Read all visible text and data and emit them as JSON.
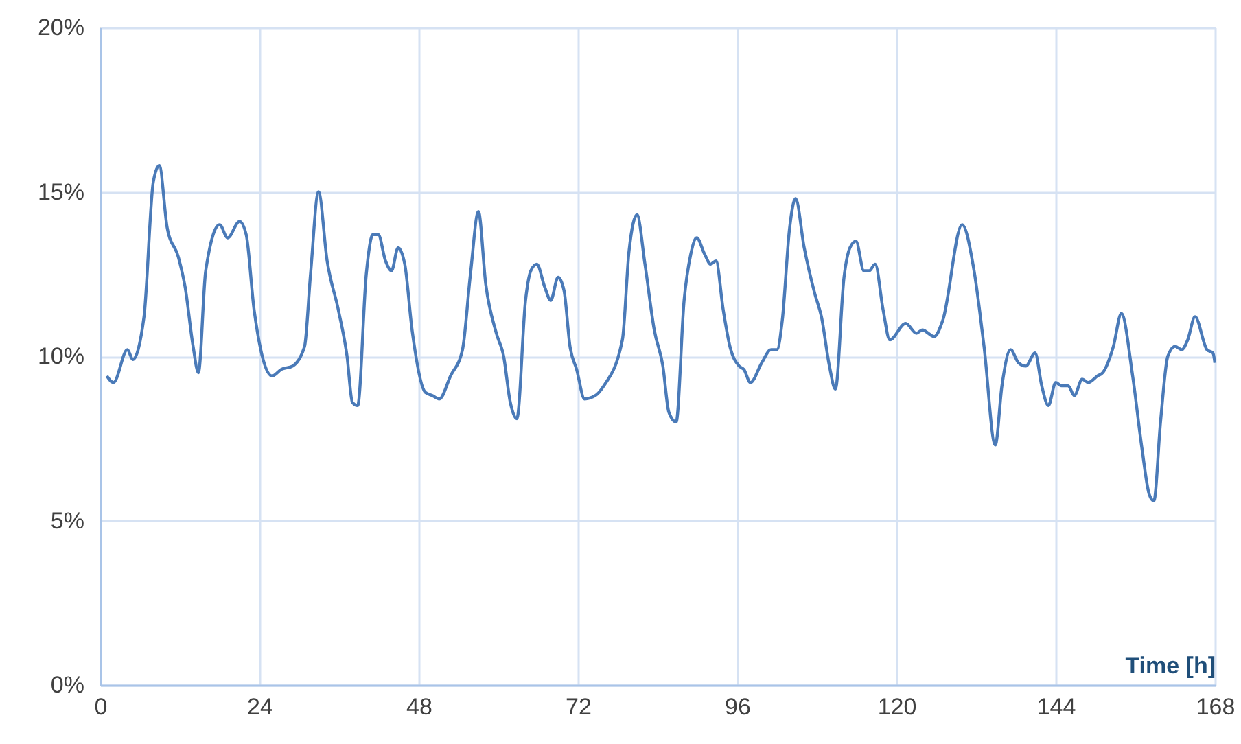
{
  "chart_data": {
    "type": "line",
    "xlabel": "Time [h]",
    "x": [
      1.0,
      2.0,
      4.1,
      4.9,
      6.6,
      8.0,
      8.9,
      10.1,
      11.8,
      12.8,
      14.0,
      14.8,
      15.9,
      18.0,
      19.2,
      21.0,
      22.0,
      23.2,
      25.9,
      27.3,
      29.0,
      30.8,
      31.7,
      32.9,
      34.2,
      35.9,
      37.2,
      38.0,
      38.8,
      40.1,
      41.1,
      41.9,
      43.0,
      43.9,
      44.9,
      45.9,
      47.0,
      49.0,
      50.1,
      51.1,
      52.8,
      54.6,
      55.8,
      57.0,
      58.1,
      59.7,
      60.8,
      61.8,
      62.8,
      64.1,
      64.9,
      65.8,
      67.0,
      67.9,
      69.0,
      69.9,
      70.8,
      71.8,
      73.0,
      74.6,
      75.9,
      78.7,
      79.7,
      80.9,
      82.1,
      83.5,
      84.8,
      85.7,
      86.8,
      88.0,
      89.0,
      89.9,
      91.1,
      92.0,
      92.8,
      93.9,
      94.9,
      96.3,
      97.0,
      98.0,
      99.7,
      101.1,
      102.0,
      102.8,
      103.9,
      104.8,
      106.1,
      107.7,
      108.7,
      109.9,
      110.8,
      112.1,
      113.0,
      113.9,
      115.1,
      115.9,
      116.8,
      118.0,
      119.0,
      121.4,
      123.0,
      123.9,
      125.7,
      127.0,
      129.9,
      131.7,
      133.2,
      134.9,
      135.9,
      137.2,
      138.4,
      139.5,
      140.9,
      141.9,
      142.9,
      144.0,
      144.9,
      145.9,
      146.8,
      148.0,
      148.9,
      150.3,
      151.1,
      152.7,
      153.9,
      155.6,
      157.0,
      158.1,
      158.8,
      159.8,
      160.9,
      162.0,
      163.0,
      163.9,
      165.0,
      166.8,
      167.7,
      168.0
    ],
    "series": [
      {
        "color": "#4a7ab8",
        "values": [
          9.4,
          9.2,
          10.2,
          9.9,
          11.2,
          15.3,
          15.8,
          13.9,
          13.0,
          12.1,
          10.3,
          9.5,
          12.6,
          14.0,
          13.6,
          14.1,
          13.7,
          11.4,
          9.4,
          9.6,
          9.7,
          10.3,
          12.5,
          15.0,
          12.9,
          11.4,
          10.0,
          8.6,
          8.5,
          12.5,
          13.7,
          13.7,
          12.9,
          12.6,
          13.3,
          12.8,
          10.8,
          8.9,
          8.8,
          8.7,
          9.4,
          10.2,
          12.5,
          14.4,
          12.2,
          10.7,
          10.0,
          8.6,
          8.1,
          11.7,
          12.6,
          12.8,
          12.1,
          11.7,
          12.4,
          12.0,
          10.3,
          9.6,
          8.7,
          8.8,
          9.1,
          10.5,
          13.2,
          14.3,
          12.8,
          10.8,
          9.7,
          8.3,
          8.0,
          11.7,
          13.1,
          13.6,
          13.1,
          12.8,
          12.9,
          11.4,
          10.3,
          9.7,
          9.6,
          9.2,
          9.8,
          10.2,
          10.2,
          11.1,
          13.9,
          14.8,
          13.3,
          11.9,
          11.2,
          9.7,
          9.0,
          12.4,
          13.3,
          13.5,
          12.6,
          12.6,
          12.8,
          11.4,
          10.5,
          11.0,
          10.7,
          10.8,
          10.6,
          11.1,
          14.0,
          12.6,
          10.3,
          7.3,
          9.1,
          10.2,
          9.8,
          9.7,
          10.1,
          9.1,
          8.5,
          9.2,
          9.1,
          9.1,
          8.8,
          9.3,
          9.2,
          9.4,
          9.5,
          10.3,
          11.3,
          9.4,
          7.2,
          5.8,
          5.6,
          8.0,
          10.0,
          10.3,
          10.2,
          10.5,
          11.2,
          10.2,
          10.1,
          9.8
        ]
      }
    ],
    "xlim": [
      0,
      168
    ],
    "xticks": [
      0,
      24,
      48,
      72,
      96,
      120,
      144,
      168
    ],
    "ylim": [
      0,
      20
    ],
    "yticks": [
      {
        "value": 0,
        "label": "0%"
      },
      {
        "value": 5,
        "label": "5%"
      },
      {
        "value": 10,
        "label": "10%"
      },
      {
        "value": 15,
        "label": "15%"
      },
      {
        "value": 20,
        "label": "20%"
      }
    ],
    "grid": true,
    "line_style": "solid",
    "marker": "none"
  }
}
